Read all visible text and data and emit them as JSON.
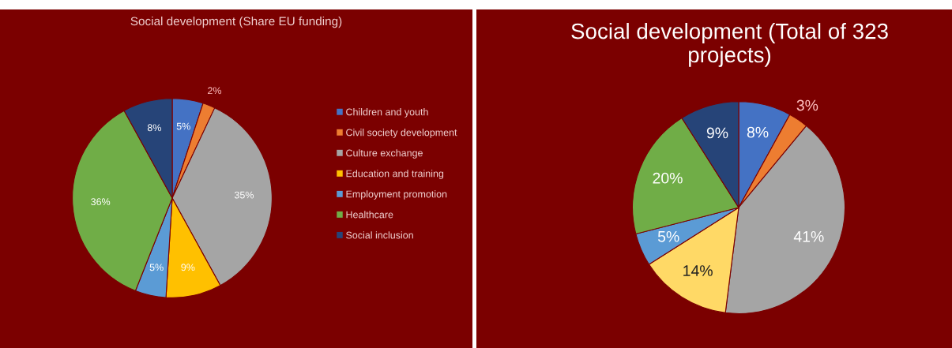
{
  "chart_data": [
    {
      "type": "pie",
      "title": "Social development (Share EU funding)",
      "categories": [
        "Children and youth",
        "Civil society development",
        "Culture exchange",
        "Education and training",
        "Employment promotion",
        "Healthcare",
        "Social inclusion"
      ],
      "values": [
        5,
        2,
        35,
        9,
        5,
        36,
        8
      ],
      "colors": [
        "#4472c4",
        "#ed7d31",
        "#a5a5a5",
        "#ffc000",
        "#5b9bd5",
        "#70ad47",
        "#264478"
      ],
      "value_labels": [
        "5%",
        "2%",
        "35%",
        "9%",
        "5%",
        "36%",
        "8%"
      ],
      "legend": "right"
    },
    {
      "type": "pie",
      "title": "Social development (Total of 323 projects)",
      "categories": [
        null,
        null,
        null,
        null,
        null,
        null,
        null
      ],
      "values": [
        8,
        3,
        41,
        14,
        5,
        20,
        9
      ],
      "colors": [
        "#4472c4",
        "#ed7d31",
        "#a5a5a5",
        "#ffd966",
        "#5b9bd5",
        "#70ad47",
        "#264478"
      ],
      "value_labels": [
        "8%",
        "3%",
        "41%",
        "14%",
        "5%",
        "20%",
        "9%"
      ],
      "legend": false
    }
  ]
}
